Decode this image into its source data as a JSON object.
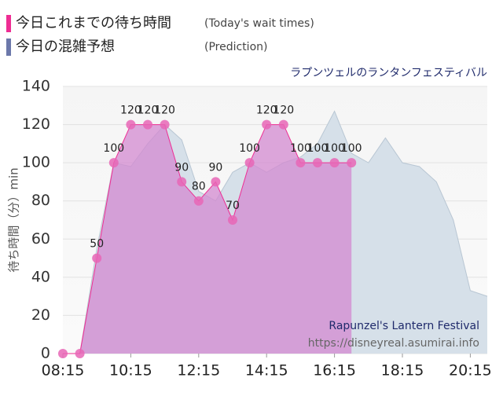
{
  "chart_data": {
    "type": "area",
    "subtitle": "ラプンツェルのランタンフェスティバル",
    "ylabel": "待ち時間（分）min",
    "annotations": [
      "Rapunzel's Lantern Festival",
      "https://disneyreal.asumirai.info"
    ],
    "xlim": [
      "08:15",
      "20:45"
    ],
    "xticks": [
      "08:15",
      "10:15",
      "12:15",
      "14:15",
      "16:15",
      "18:15",
      "20:15"
    ],
    "ylim": [
      0,
      140
    ],
    "yticks": [
      0,
      20,
      40,
      60,
      80,
      100,
      120,
      140
    ],
    "grid": true,
    "series": [
      {
        "name": "今日これまでの待ち時間",
        "note": "(Today's wait times)",
        "color": "#ee2d93",
        "fill": "#d38ad0",
        "x": [
          "08:15",
          "08:45",
          "09:15",
          "09:45",
          "10:15",
          "10:45",
          "11:15",
          "11:45",
          "12:15",
          "12:45",
          "13:15",
          "13:45",
          "14:15",
          "14:45",
          "15:15",
          "15:45",
          "16:15",
          "16:45"
        ],
        "values": [
          0,
          0,
          50,
          100,
          120,
          120,
          120,
          90,
          80,
          90,
          70,
          100,
          120,
          120,
          100,
          100,
          100,
          100
        ]
      },
      {
        "name": "今日の混雑予想",
        "note": "(Prediction)",
        "color": "#6c78aa",
        "fill": "#d6e0e9",
        "x": [
          "08:15",
          "08:45",
          "09:15",
          "09:45",
          "10:15",
          "10:45",
          "11:15",
          "11:45",
          "12:15",
          "12:45",
          "13:15",
          "13:45",
          "14:15",
          "14:45",
          "15:15",
          "15:45",
          "16:15",
          "16:45",
          "17:15",
          "17:45",
          "18:15",
          "18:45",
          "19:15",
          "19:45",
          "20:15",
          "20:45"
        ],
        "values": [
          0,
          0,
          55,
          100,
          98,
          110,
          120,
          112,
          85,
          80,
          95,
          100,
          95,
          100,
          103,
          110,
          127,
          105,
          100,
          113,
          100,
          98,
          90,
          70,
          33,
          30
        ]
      }
    ]
  }
}
